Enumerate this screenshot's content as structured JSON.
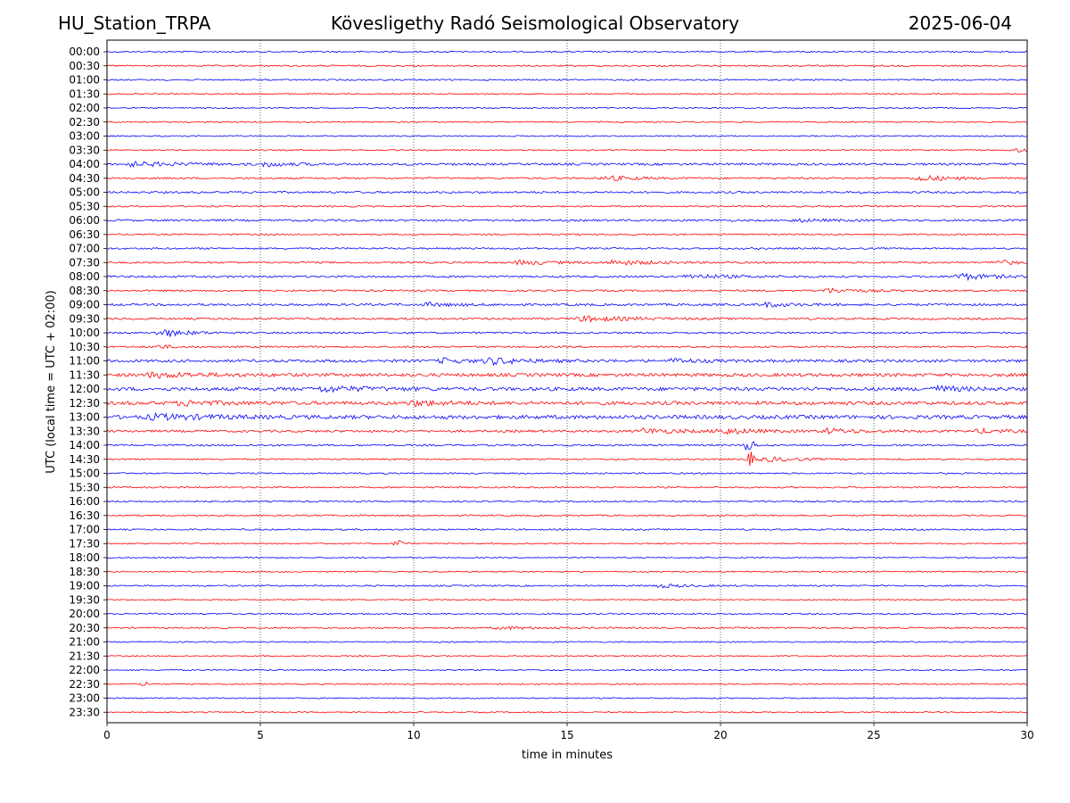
{
  "header": {
    "station": "HU_Station_TRPA",
    "observatory": "Kövesligethy Radó Seismological Observatory",
    "date": "2025-06-04"
  },
  "chart_data": {
    "type": "line",
    "title": "Kövesligethy Radó Seismological Observatory",
    "xlabel": "time in minutes",
    "ylabel": "UTC (local time = UTC + 02:00)",
    "xlim": [
      0,
      30
    ],
    "xticks": [
      0,
      5,
      10,
      15,
      20,
      25,
      30
    ],
    "grid": "vertical dotted at 5-minute intervals",
    "colors": {
      "even_rows": "#0000ff",
      "odd_rows": "#ff0000"
    },
    "rows": [
      {
        "label": "00:00",
        "noise": 0.12,
        "events": []
      },
      {
        "label": "00:30",
        "noise": 0.12,
        "events": []
      },
      {
        "label": "01:00",
        "noise": 0.12,
        "events": []
      },
      {
        "label": "01:30",
        "noise": 0.1,
        "events": []
      },
      {
        "label": "02:00",
        "noise": 0.1,
        "events": []
      },
      {
        "label": "02:30",
        "noise": 0.1,
        "events": []
      },
      {
        "label": "03:00",
        "noise": 0.1,
        "events": []
      },
      {
        "label": "03:30",
        "noise": 0.1,
        "events": [
          {
            "t": 29.8,
            "amp": 0.35,
            "dur": 0.3
          }
        ]
      },
      {
        "label": "04:00",
        "noise": 0.18,
        "events": [
          {
            "t": 0.8,
            "amp": 0.32,
            "dur": 1.5
          },
          {
            "t": 5.2,
            "amp": 0.3,
            "dur": 0.8
          }
        ]
      },
      {
        "label": "04:30",
        "noise": 0.14,
        "events": [
          {
            "t": 16.3,
            "amp": 0.35,
            "dur": 1.0
          },
          {
            "t": 26.5,
            "amp": 0.45,
            "dur": 1.0
          }
        ]
      },
      {
        "label": "05:00",
        "noise": 0.16,
        "events": []
      },
      {
        "label": "05:30",
        "noise": 0.12,
        "events": []
      },
      {
        "label": "06:00",
        "noise": 0.16,
        "events": [
          {
            "t": 22.5,
            "amp": 0.2,
            "dur": 1.0
          }
        ]
      },
      {
        "label": "06:30",
        "noise": 0.12,
        "events": []
      },
      {
        "label": "07:00",
        "noise": 0.14,
        "events": []
      },
      {
        "label": "07:30",
        "noise": 0.14,
        "events": [
          {
            "t": 13.5,
            "amp": 0.35,
            "dur": 1.0
          },
          {
            "t": 16.5,
            "amp": 0.35,
            "dur": 1.5
          },
          {
            "t": 29.0,
            "amp": 0.35,
            "dur": 0.8
          }
        ]
      },
      {
        "label": "08:00",
        "noise": 0.16,
        "events": [
          {
            "t": 19.0,
            "amp": 0.3,
            "dur": 1.5
          },
          {
            "t": 27.8,
            "amp": 0.5,
            "dur": 1.0
          }
        ]
      },
      {
        "label": "08:30",
        "noise": 0.14,
        "events": [
          {
            "t": 23.5,
            "amp": 0.35,
            "dur": 1.0
          }
        ]
      },
      {
        "label": "09:00",
        "noise": 0.18,
        "events": [
          {
            "t": 10.5,
            "amp": 0.25,
            "dur": 0.8
          },
          {
            "t": 21.5,
            "amp": 0.3,
            "dur": 0.8
          }
        ]
      },
      {
        "label": "09:30",
        "noise": 0.16,
        "events": [
          {
            "t": 15.5,
            "amp": 0.4,
            "dur": 1.5
          }
        ]
      },
      {
        "label": "10:00",
        "noise": 0.14,
        "events": [
          {
            "t": 1.8,
            "amp": 0.6,
            "dur": 0.8
          }
        ]
      },
      {
        "label": "10:30",
        "noise": 0.14,
        "events": [
          {
            "t": 1.7,
            "amp": 0.3,
            "dur": 0.4
          }
        ]
      },
      {
        "label": "11:00",
        "noise": 0.22,
        "events": [
          {
            "t": 11.0,
            "amp": 0.4,
            "dur": 0.6
          },
          {
            "t": 12.5,
            "amp": 0.5,
            "dur": 1.0
          },
          {
            "t": 18.5,
            "amp": 0.3,
            "dur": 0.8
          }
        ]
      },
      {
        "label": "11:30",
        "noise": 0.26,
        "events": [
          {
            "t": 1.5,
            "amp": 0.35,
            "dur": 1.5
          }
        ]
      },
      {
        "label": "12:00",
        "noise": 0.28,
        "events": [
          {
            "t": 7.0,
            "amp": 0.35,
            "dur": 1.5
          },
          {
            "t": 27.0,
            "amp": 0.4,
            "dur": 0.8
          }
        ]
      },
      {
        "label": "12:30",
        "noise": 0.28,
        "events": [
          {
            "t": 2.5,
            "amp": 0.35,
            "dur": 1.0
          },
          {
            "t": 10.0,
            "amp": 0.35,
            "dur": 1.0
          }
        ]
      },
      {
        "label": "13:00",
        "noise": 0.3,
        "events": [
          {
            "t": 1.5,
            "amp": 0.35,
            "dur": 2.0
          }
        ]
      },
      {
        "label": "13:30",
        "noise": 0.18,
        "events": [
          {
            "t": 17.5,
            "amp": 0.4,
            "dur": 1.2
          },
          {
            "t": 20.0,
            "amp": 0.4,
            "dur": 1.2
          },
          {
            "t": 23.5,
            "amp": 0.35,
            "dur": 1.2
          },
          {
            "t": 28.5,
            "amp": 0.3,
            "dur": 0.8
          }
        ]
      },
      {
        "label": "14:00",
        "noise": 0.14,
        "events": [
          {
            "t": 21.0,
            "amp": 1.6,
            "dur": 0.08
          }
        ]
      },
      {
        "label": "14:30",
        "noise": 0.12,
        "events": [
          {
            "t": 21.0,
            "amp": 1.1,
            "dur": 0.15
          },
          {
            "t": 21.6,
            "amp": 0.35,
            "dur": 1.0
          }
        ]
      },
      {
        "label": "15:00",
        "noise": 0.12,
        "events": []
      },
      {
        "label": "15:30",
        "noise": 0.12,
        "events": []
      },
      {
        "label": "16:00",
        "noise": 0.12,
        "events": []
      },
      {
        "label": "16:30",
        "noise": 0.12,
        "events": []
      },
      {
        "label": "17:00",
        "noise": 0.12,
        "events": []
      },
      {
        "label": "17:30",
        "noise": 0.1,
        "events": [
          {
            "t": 9.55,
            "amp": 0.6,
            "dur": 0.12
          }
        ]
      },
      {
        "label": "18:00",
        "noise": 0.1,
        "events": []
      },
      {
        "label": "18:30",
        "noise": 0.1,
        "events": []
      },
      {
        "label": "19:00",
        "noise": 0.12,
        "events": [
          {
            "t": 18.0,
            "amp": 0.25,
            "dur": 1.0
          }
        ]
      },
      {
        "label": "19:30",
        "noise": 0.1,
        "events": []
      },
      {
        "label": "20:00",
        "noise": 0.12,
        "events": []
      },
      {
        "label": "20:30",
        "noise": 0.12,
        "events": [
          {
            "t": 12.8,
            "amp": 0.2,
            "dur": 1.5
          }
        ]
      },
      {
        "label": "21:00",
        "noise": 0.1,
        "events": []
      },
      {
        "label": "21:30",
        "noise": 0.1,
        "events": []
      },
      {
        "label": "22:00",
        "noise": 0.1,
        "events": []
      },
      {
        "label": "22:30",
        "noise": 0.1,
        "events": [
          {
            "t": 1.3,
            "amp": 0.4,
            "dur": 0.1
          }
        ]
      },
      {
        "label": "23:00",
        "noise": 0.1,
        "events": []
      },
      {
        "label": "23:30",
        "noise": 0.1,
        "events": []
      }
    ]
  }
}
